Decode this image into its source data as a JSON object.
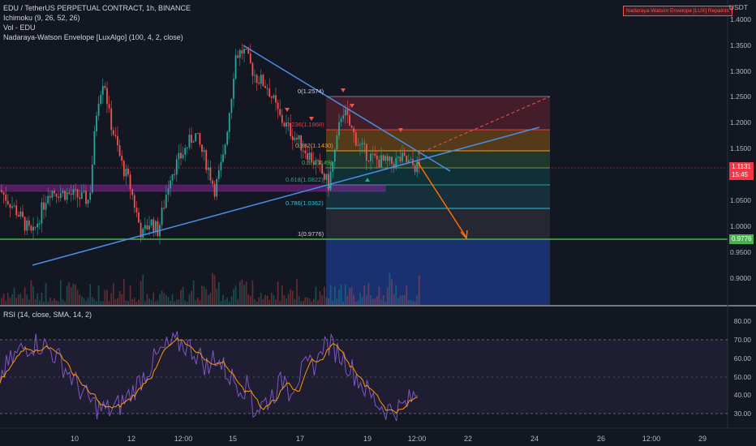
{
  "header": {
    "symbol_line": "EDU / TetherUS PERPETUAL CONTRACT, 1h, BINANCE",
    "indicators": [
      "Ichimoku (9, 26, 52, 26)",
      "Vol - EDU",
      "Nadaraya-Watson Envelope [LuxAlgo] (100, 4, 2, close)"
    ],
    "repaint_badge": "Nadaraya-Watson Envelope [LUX] Repaints"
  },
  "price_axis": {
    "currency": "USDT",
    "labels": [
      "1.4000",
      "1.3500",
      "1.3000",
      "1.2500",
      "1.2000",
      "1.1500",
      "1.1000",
      "1.0500",
      "1.0000",
      "0.9500",
      "0.9000"
    ],
    "current_price": "1.1131",
    "countdown": "15:45",
    "level_badge": "0.9776",
    "current_color": "#f23645",
    "level_color": "#4caf50"
  },
  "fib": {
    "labels": [
      "0(1.2574)",
      "0.236(1.1868)",
      "0.382(1.1430)",
      "0.5(1.1149)",
      "0.618(1.0822)",
      "0.786(1.0362)",
      "1(0.9776)"
    ],
    "values": [
      1.2574,
      1.1868,
      1.143,
      1.1149,
      1.0822,
      1.0362,
      0.9776
    ]
  },
  "rsi": {
    "title": "RSI (14, close, SMA, 14, 2)",
    "labels": [
      "80.00",
      "70.00",
      "60.00",
      "50.00",
      "40.00",
      "30.00"
    ]
  },
  "time_axis": {
    "labels": [
      "10",
      "12",
      "12:00",
      "15",
      "17",
      "19",
      "12:00",
      "22",
      "24",
      "26",
      "12:00",
      "29"
    ]
  },
  "colors": {
    "background": "#131722",
    "up": "#26a69a",
    "down": "#ef5350",
    "trendline": "#2962ff",
    "rsi_line": "#7e57c2",
    "rsi_sma": "#ff9800",
    "support": "#4caf50"
  }
}
